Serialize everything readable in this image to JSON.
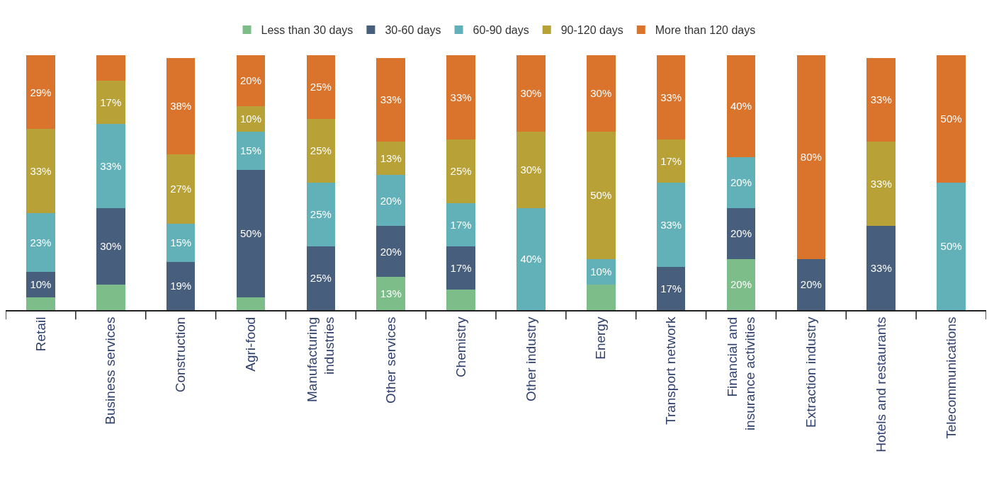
{
  "chart_data": {
    "type": "bar",
    "stacked": true,
    "legend": "top",
    "categories": [
      "Retail",
      "Business services",
      "Construction",
      "Agri-food",
      "Manufacturing\nindustries",
      "Other services",
      "Chemistry",
      "Other industry",
      "Energy",
      "Transport network",
      "Financial and\ninsurance activities",
      "Extraction industry",
      "Hotels and restaurants",
      "Telecommunications"
    ],
    "series": [
      {
        "name": "Less than 30 days",
        "color": "#7dbd89",
        "values": [
          5,
          10,
          null,
          5,
          null,
          13,
          8,
          null,
          10,
          null,
          20,
          null,
          null,
          null
        ],
        "value_labels": [
          null,
          null,
          null,
          null,
          null,
          "13%",
          null,
          null,
          null,
          null,
          "20%",
          null,
          null,
          null
        ]
      },
      {
        "name": "30-60 days",
        "color": "#485e7d",
        "values": [
          10,
          30,
          19,
          50,
          25,
          20,
          17,
          null,
          null,
          17,
          20,
          20,
          33,
          null
        ],
        "value_labels": [
          "10%",
          "30%",
          "19%",
          "50%",
          "25%",
          "20%",
          "17%",
          null,
          null,
          "17%",
          "20%",
          "20%",
          "33%",
          null
        ]
      },
      {
        "name": "60-90 days",
        "color": "#62b1b9",
        "values": [
          23,
          33,
          15,
          15,
          25,
          20,
          17,
          40,
          10,
          33,
          20,
          null,
          null,
          50
        ],
        "value_labels": [
          "23%",
          "33%",
          "15%",
          "15%",
          "25%",
          "20%",
          "17%",
          "40%",
          "10%",
          "33%",
          "20%",
          null,
          null,
          "50%"
        ]
      },
      {
        "name": "90-120 days",
        "color": "#b8a136",
        "values": [
          33,
          17,
          27,
          10,
          25,
          13,
          25,
          30,
          50,
          17,
          null,
          null,
          33,
          null
        ],
        "value_labels": [
          "33%",
          "17%",
          "27%",
          "10%",
          "25%",
          "13%",
          "25%",
          "30%",
          "50%",
          "17%",
          null,
          null,
          "33%",
          null
        ]
      },
      {
        "name": "More than 120 days",
        "color": "#da732b",
        "values": [
          29,
          10,
          38,
          20,
          25,
          33,
          33,
          30,
          30,
          33,
          40,
          80,
          33,
          50
        ],
        "value_labels": [
          "29%",
          null,
          "38%",
          "20%",
          "25%",
          "33%",
          "33%",
          "30%",
          "30%",
          "33%",
          "40%",
          "80%",
          "33%",
          "50%"
        ]
      }
    ]
  }
}
